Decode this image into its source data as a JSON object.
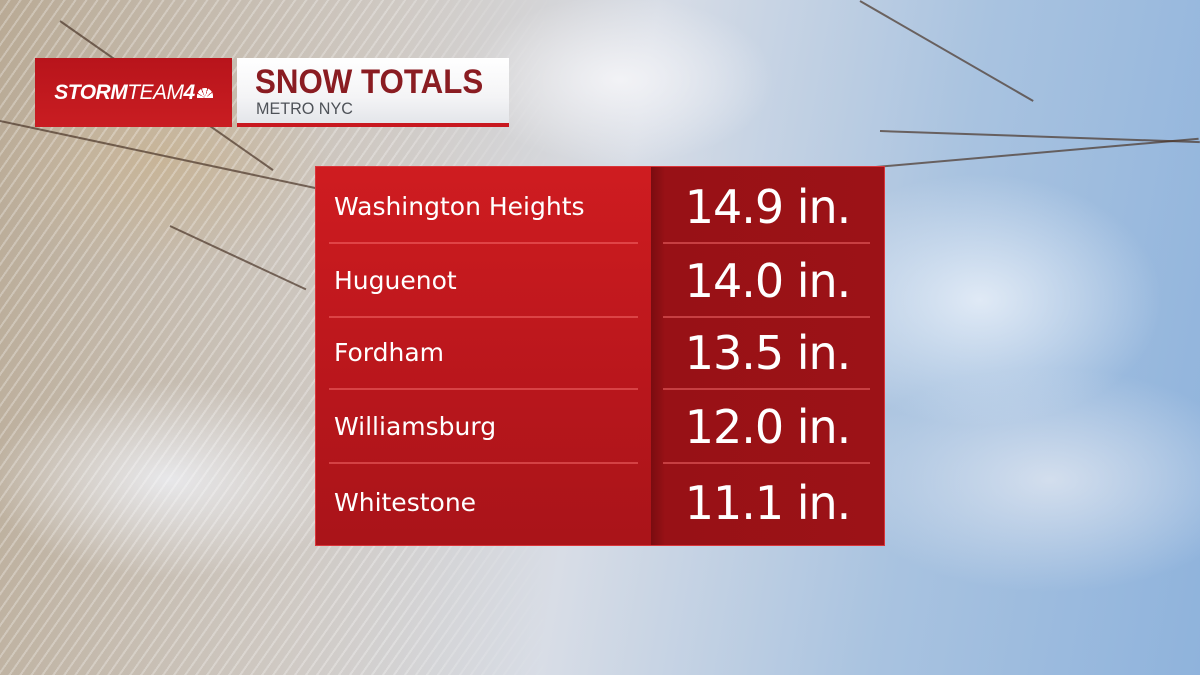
{
  "header": {
    "logo_text": "STORMTEAM4",
    "title": "SNOW TOTALS",
    "subtitle": "METRO NYC"
  },
  "colors": {
    "accent_red": "#c8181f",
    "title_red": "#8a1c22",
    "value_column": "#9c1217"
  },
  "snow_totals": [
    {
      "location": "Washington Heights",
      "total": "14.9 in."
    },
    {
      "location": "Huguenot",
      "total": "14.0 in."
    },
    {
      "location": "Fordham",
      "total": "13.5 in."
    },
    {
      "location": "Williamsburg",
      "total": "12.0 in."
    },
    {
      "location": "Whitestone",
      "total": "11.1 in."
    }
  ]
}
